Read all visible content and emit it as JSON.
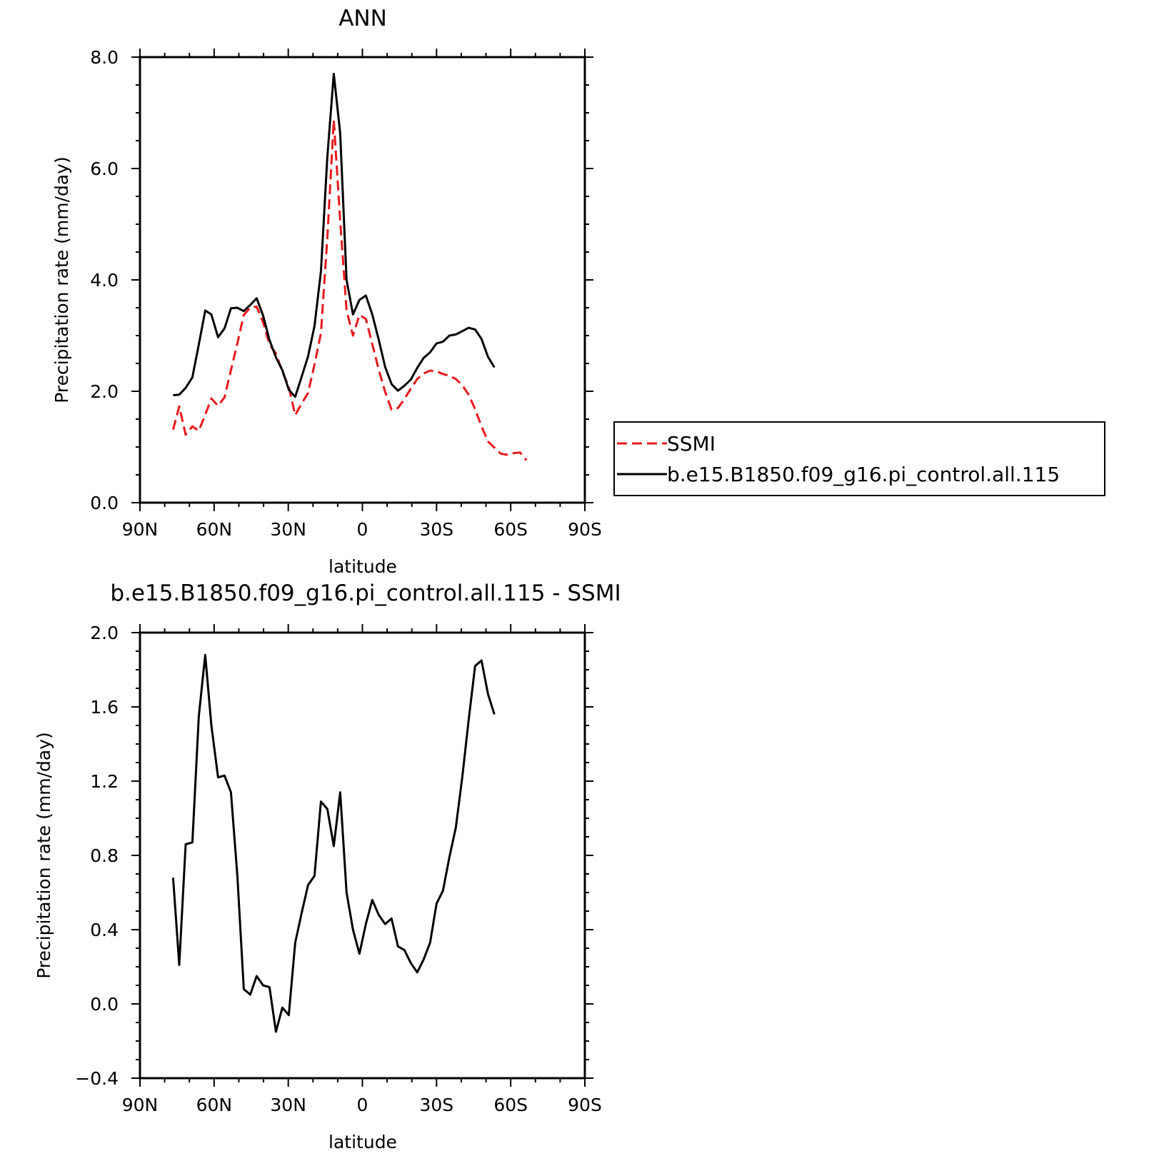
{
  "chart_data": [
    {
      "type": "line",
      "title": "ANN",
      "xlabel": "latitude",
      "ylabel": "Precipitation rate (mm/day)",
      "xlim": [
        90,
        -90
      ],
      "ylim": [
        0,
        8
      ],
      "x_ticks": [
        90,
        60,
        30,
        0,
        -30,
        -60,
        -90
      ],
      "x_tick_labels": [
        "90N",
        "60N",
        "30N",
        "0",
        "30S",
        "60S",
        "90S"
      ],
      "y_ticks": [
        0,
        2,
        4,
        6,
        8
      ],
      "y_tick_labels": [
        "0.0",
        "2.0",
        "4.0",
        "6.0",
        "8.0"
      ],
      "legend_position": "right",
      "series": [
        {
          "name": "SSMI",
          "color": "#e8191c",
          "dash": true,
          "x": [
            76.6,
            74.1,
            71.5,
            68.8,
            66.2,
            63.6,
            61.1,
            58.4,
            55.8,
            53.2,
            50.6,
            48.0,
            45.4,
            42.8,
            40.2,
            37.6,
            35.0,
            32.4,
            29.8,
            27.2,
            24.6,
            22.0,
            19.4,
            16.8,
            14.2,
            11.6,
            9.0,
            6.4,
            3.8,
            1.2,
            -1.4,
            -4.0,
            -6.6,
            -9.2,
            -11.8,
            -14.4,
            -17.0,
            -19.6,
            -22.2,
            -24.8,
            -27.4,
            -30.0,
            -32.6,
            -35.2,
            -37.8,
            -40.4,
            -43.0,
            -45.6,
            -48.2,
            -50.8,
            -53.4,
            -56.0,
            -58.6,
            -61.2,
            -63.8,
            -66.4,
            -69.0,
            -71.6,
            -74.2
          ],
          "y": [
            1.31,
            1.73,
            1.22,
            1.37,
            1.29,
            1.58,
            1.87,
            1.74,
            1.89,
            2.38,
            2.86,
            3.37,
            3.5,
            3.52,
            3.24,
            2.84,
            2.68,
            2.35,
            2.08,
            1.57,
            1.78,
            1.97,
            2.48,
            3.04,
            4.76,
            6.87,
            5.06,
            3.45,
            3.0,
            3.37,
            3.3,
            2.85,
            2.39,
            1.99,
            1.67,
            1.7,
            1.86,
            2.05,
            2.22,
            2.32,
            2.37,
            2.36,
            2.31,
            2.28,
            2.22,
            2.11,
            1.94,
            1.68,
            1.37,
            1.1,
            0.99,
            0.88,
            0.86,
            0.89,
            0.9,
            0.76,
            null,
            null,
            null
          ]
        },
        {
          "name": "b.e15.B1850.f09_g16.pi_control.all.115",
          "color": "#000000",
          "dash": false,
          "x": [
            76.6,
            74.1,
            71.5,
            68.8,
            66.2,
            63.6,
            61.1,
            58.4,
            55.8,
            53.2,
            50.6,
            48.0,
            45.4,
            42.8,
            40.2,
            37.6,
            35.0,
            32.4,
            29.8,
            27.2,
            24.6,
            22.0,
            19.4,
            16.8,
            14.2,
            11.6,
            9.0,
            6.4,
            3.8,
            1.2,
            -1.4,
            -4.0,
            -6.6,
            -9.2,
            -11.8,
            -14.4,
            -17.0,
            -19.6,
            -22.2,
            -24.8,
            -27.4,
            -30.0,
            -32.6,
            -35.2,
            -37.8,
            -40.4,
            -43.0,
            -45.6,
            -48.2,
            -50.8,
            -53.4,
            -56.0,
            -58.6,
            -61.2,
            -63.8
          ],
          "y": [
            1.93,
            1.94,
            2.06,
            2.25,
            2.84,
            3.45,
            3.38,
            2.97,
            3.13,
            3.49,
            3.5,
            3.44,
            3.55,
            3.67,
            3.36,
            2.92,
            2.61,
            2.38,
            2.03,
            1.9,
            2.26,
            2.63,
            3.17,
            4.15,
            6.21,
            7.7,
            6.63,
            4.0,
            3.38,
            3.64,
            3.72,
            3.38,
            2.93,
            2.44,
            2.13,
            2.01,
            2.1,
            2.21,
            2.42,
            2.6,
            2.7,
            2.86,
            2.89,
            3.0,
            3.02,
            3.08,
            3.14,
            3.11,
            2.94,
            2.62,
            2.43,
            null,
            null,
            null,
            null
          ]
        }
      ]
    },
    {
      "type": "line",
      "title": "b.e15.B1850.f09_g16.pi_control.all.115 - SSMI",
      "xlabel": "latitude",
      "ylabel": "Precipitation rate (mm/day)",
      "xlim": [
        90,
        -90
      ],
      "ylim": [
        -0.4,
        2.0
      ],
      "x_ticks": [
        90,
        60,
        30,
        0,
        -30,
        -60,
        -90
      ],
      "x_tick_labels": [
        "90N",
        "60N",
        "30N",
        "0",
        "30S",
        "60S",
        "90S"
      ],
      "y_ticks": [
        -0.4,
        0.0,
        0.4,
        0.8,
        1.2,
        1.6,
        2.0
      ],
      "y_tick_labels": [
        "−0.4",
        "0.0",
        "0.4",
        "0.8",
        "1.2",
        "1.6",
        "2.0"
      ],
      "series": [
        {
          "color": "#000000",
          "x": [
            76.6,
            74.1,
            71.5,
            68.8,
            66.2,
            63.6,
            61.1,
            58.4,
            55.8,
            53.2,
            50.6,
            48.0,
            45.4,
            42.8,
            40.2,
            37.6,
            35.0,
            32.4,
            29.8,
            27.2,
            24.6,
            22.0,
            19.4,
            16.8,
            14.2,
            11.6,
            9.0,
            6.4,
            3.8,
            1.2,
            -1.4,
            -4.0,
            -6.6,
            -9.2,
            -11.8,
            -14.4,
            -17.0,
            -19.6,
            -22.2,
            -24.8,
            -27.4,
            -30.0,
            -32.6,
            -35.2,
            -37.8,
            -40.4,
            -43.0,
            -45.6,
            -48.2,
            -50.8,
            -53.4,
            -56.0,
            -58.6,
            -61.2,
            -63.8
          ],
          "y": [
            0.68,
            0.21,
            0.86,
            0.87,
            1.55,
            1.88,
            1.5,
            1.22,
            1.23,
            1.14,
            0.69,
            0.08,
            0.05,
            0.15,
            0.1,
            0.09,
            -0.15,
            -0.02,
            -0.06,
            0.33,
            0.49,
            0.64,
            0.69,
            1.09,
            1.05,
            0.85,
            1.14,
            0.6,
            0.4,
            0.27,
            0.43,
            0.56,
            0.48,
            0.43,
            0.46,
            0.31,
            0.29,
            0.22,
            0.17,
            0.24,
            0.33,
            0.54,
            0.61,
            0.79,
            0.95,
            1.22,
            1.53,
            1.82,
            1.85,
            1.67,
            1.56,
            null,
            null,
            null,
            null
          ]
        }
      ]
    }
  ]
}
